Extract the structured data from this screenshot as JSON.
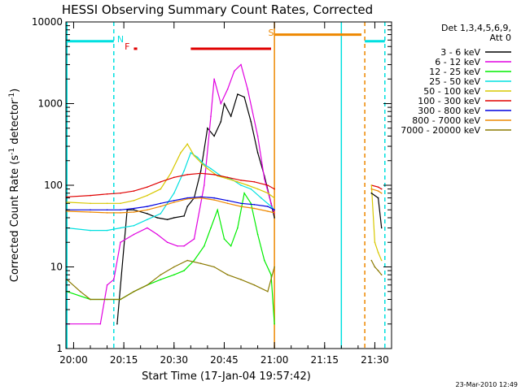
{
  "chart_data": {
    "type": "line",
    "title": "HESSI Observing Summary Count Rates, Corrected",
    "xlabel": "Start Time (17-Jan-04 19:57:42)",
    "ylabel": "Corrected Count Rate (s",
    "ylabel_sup": "-1",
    "ylabel_mid": " detector",
    "ylabel_end": ")",
    "y_scale": "log",
    "ylim": [
      1,
      10000
    ],
    "xlim": [
      "19:57:42",
      "21:35:00"
    ],
    "x_ticks": [
      "20:00",
      "20:15",
      "20:30",
      "20:45",
      "21:00",
      "21:15",
      "21:30"
    ],
    "y_ticks": [
      "1",
      "10",
      "100",
      "1000",
      "10000"
    ],
    "legend_header": [
      "Det 1,3,4,5,6,9,",
      "Att 0"
    ],
    "legend_position": "right",
    "footer": "23-Mar-2010 12:49",
    "series": [
      {
        "name": "3 - 6 keV",
        "color": "#000000",
        "x": [
          "20:13",
          "20:16",
          "20:18",
          "20:22",
          "20:25",
          "20:28",
          "20:30",
          "20:33",
          "20:34",
          "20:36",
          "20:38",
          "20:40",
          "20:42",
          "20:44",
          "20:45",
          "20:47",
          "20:49",
          "20:51",
          "20:53",
          "20:55",
          "20:57",
          "20:59",
          "21:00"
        ],
        "y": [
          2,
          50,
          50,
          45,
          40,
          38,
          40,
          42,
          55,
          70,
          150,
          500,
          400,
          600,
          1000,
          700,
          1300,
          1200,
          600,
          250,
          130,
          60,
          40
        ]
      },
      {
        "name": "6 - 12 keV",
        "color": "#e000e0",
        "x": [
          "19:58",
          "20:08",
          "20:10",
          "20:12",
          "20:14",
          "20:18",
          "20:22",
          "20:25",
          "20:28",
          "20:31",
          "20:33",
          "20:36",
          "20:39",
          "20:41",
          "20:42",
          "20:44",
          "20:46",
          "20:48",
          "20:50",
          "20:52",
          "20:55",
          "20:57",
          "20:59",
          "21:00"
        ],
        "y": [
          2,
          2,
          6,
          7,
          20,
          25,
          30,
          25,
          20,
          18,
          18,
          22,
          100,
          700,
          2000,
          1000,
          1500,
          2500,
          3000,
          1500,
          400,
          120,
          60,
          45
        ]
      },
      {
        "name": "12 - 25 keV",
        "color": "#00ee00",
        "x": [
          "19:58",
          "20:05",
          "20:10",
          "20:14",
          "20:18",
          "20:22",
          "20:26",
          "20:30",
          "20:33",
          "20:36",
          "20:39",
          "20:41",
          "20:43",
          "20:45",
          "20:47",
          "20:49",
          "20:51",
          "20:53",
          "20:55",
          "20:57",
          "20:59",
          "21:00"
        ],
        "y": [
          5,
          4,
          4,
          4,
          5,
          6,
          7,
          8,
          9,
          12,
          18,
          30,
          50,
          22,
          18,
          30,
          80,
          60,
          25,
          12,
          8,
          2
        ]
      },
      {
        "name": "25 - 50 keV",
        "color": "#00e0e0",
        "x": [
          "19:58",
          "20:05",
          "20:10",
          "20:14",
          "20:18",
          "20:22",
          "20:26",
          "20:30",
          "20:33",
          "20:35",
          "20:37",
          "20:39",
          "20:41",
          "20:44",
          "20:47",
          "20:50",
          "20:53",
          "20:56",
          "20:59",
          "21:00"
        ],
        "y": [
          30,
          28,
          28,
          30,
          32,
          38,
          45,
          80,
          150,
          250,
          220,
          180,
          160,
          130,
          120,
          100,
          90,
          70,
          55,
          50
        ]
      },
      {
        "name": "50 - 100 keV",
        "color": "#d8c800",
        "x": [
          "19:58",
          "20:05",
          "20:10",
          "20:14",
          "20:18",
          "20:22",
          "20:26",
          "20:29",
          "20:32",
          "20:34",
          "20:36",
          "20:38",
          "20:40",
          "20:43",
          "20:46",
          "20:49",
          "20:52",
          "20:55",
          "20:58",
          "21:00"
        ],
        "y": [
          62,
          60,
          60,
          60,
          65,
          75,
          90,
          140,
          250,
          320,
          230,
          190,
          160,
          130,
          120,
          110,
          100,
          90,
          80,
          70
        ]
      },
      {
        "name": "100 - 300 keV",
        "color": "#e00000",
        "x": [
          "19:58",
          "20:05",
          "20:10",
          "20:14",
          "20:18",
          "20:22",
          "20:26",
          "20:30",
          "20:34",
          "20:38",
          "20:42",
          "20:46",
          "20:50",
          "20:54",
          "20:58",
          "21:00"
        ],
        "y": [
          72,
          75,
          78,
          80,
          85,
          95,
          110,
          125,
          135,
          140,
          135,
          125,
          115,
          110,
          100,
          90
        ]
      },
      {
        "name": "300 - 800 keV",
        "color": "#0000e0",
        "x": [
          "19:58",
          "20:05",
          "20:10",
          "20:14",
          "20:18",
          "20:22",
          "20:26",
          "20:30",
          "20:34",
          "20:38",
          "20:42",
          "20:46",
          "20:50",
          "20:54",
          "20:58",
          "21:00"
        ],
        "y": [
          50,
          50,
          50,
          50,
          52,
          55,
          60,
          65,
          70,
          72,
          70,
          65,
          60,
          58,
          55,
          50
        ]
      },
      {
        "name": "800 - 7000 keV",
        "color": "#ee8800",
        "x": [
          "19:58",
          "20:05",
          "20:10",
          "20:14",
          "20:18",
          "20:22",
          "20:26",
          "20:30",
          "20:34",
          "20:38",
          "20:42",
          "20:46",
          "20:50",
          "20:54",
          "20:58",
          "21:00"
        ],
        "y": [
          48,
          47,
          46,
          46,
          47,
          50,
          55,
          62,
          68,
          70,
          66,
          60,
          55,
          52,
          48,
          46
        ]
      },
      {
        "name": "7000 - 20000 keV",
        "color": "#8b7a00",
        "x": [
          "19:58",
          "20:02",
          "20:05",
          "20:10",
          "20:14",
          "20:18",
          "20:22",
          "20:26",
          "20:30",
          "20:34",
          "20:38",
          "20:42",
          "20:46",
          "20:50",
          "20:54",
          "20:58",
          "21:00"
        ],
        "y": [
          7,
          5,
          4,
          4,
          4,
          5,
          6,
          8,
          10,
          12,
          11,
          10,
          8,
          7,
          6,
          5,
          10
        ]
      }
    ],
    "late_series": [
      {
        "color": "#e00000",
        "x": [
          "21:29",
          "21:31",
          "21:32"
        ],
        "y": [
          100,
          95,
          90
        ]
      },
      {
        "color": "#d8c800",
        "x": [
          "21:29",
          "21:30",
          "21:31",
          "21:32"
        ],
        "y": [
          100,
          20,
          15,
          12
        ]
      },
      {
        "color": "#ee8800",
        "x": [
          "21:29",
          "21:31",
          "21:32"
        ],
        "y": [
          90,
          85,
          80
        ]
      },
      {
        "color": "#8b7a00",
        "x": [
          "21:29",
          "21:30",
          "21:31",
          "21:32"
        ],
        "y": [
          12,
          10,
          9,
          8
        ]
      },
      {
        "color": "#000000",
        "x": [
          "21:29",
          "21:31",
          "21:32"
        ],
        "y": [
          80,
          70,
          30
        ]
      }
    ],
    "flags": [
      {
        "label": "N",
        "color": "#00e0e0",
        "x": "20:14"
      },
      {
        "label": "F",
        "color": "#e00000",
        "x": "20:16"
      },
      {
        "label": "S",
        "color": "#ee8800",
        "x": "20:59"
      }
    ],
    "state_bars": [
      {
        "color": "#00e0e0",
        "start": "19:58",
        "end": "20:12",
        "y": 5800
      },
      {
        "color": "#00e0e0",
        "start": "21:27",
        "end": "21:33",
        "y": 5800
      },
      {
        "color": "#e00000",
        "start": "20:18",
        "end": "20:19",
        "y": 4700
      },
      {
        "color": "#e00000",
        "start": "20:35",
        "end": "20:59",
        "y": 4700
      },
      {
        "color": "#ee8800",
        "start": "21:00",
        "end": "21:26",
        "y": 7000
      }
    ],
    "vlines": [
      {
        "color": "#00e0e0",
        "x": "19:58",
        "dash": false
      },
      {
        "color": "#00e0e0",
        "x": "20:12",
        "dash": true
      },
      {
        "color": "#ee8800",
        "x": "21:00",
        "dash": false
      },
      {
        "color": "#00e0e0",
        "x": "21:20",
        "dash": false
      },
      {
        "color": "#ee8800",
        "x": "21:27",
        "dash": true
      },
      {
        "color": "#00e0e0",
        "x": "21:33",
        "dash": true
      }
    ]
  }
}
